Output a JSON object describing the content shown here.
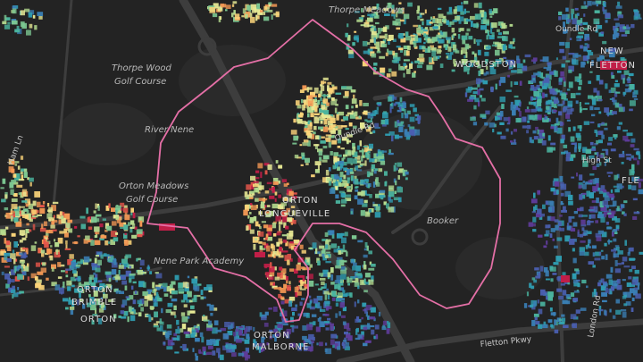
{
  "map": {
    "background": "#232323",
    "road_color": "#3d3d3d",
    "boundary_color": "#e46fa6",
    "palette": [
      "#5e3c99",
      "#4a5fb0",
      "#3a7fb5",
      "#2f9eb2",
      "#4ab39e",
      "#7dc993",
      "#b6dc8f",
      "#e8ea95",
      "#fcd57a",
      "#f79a55",
      "#e5554a",
      "#c21e48"
    ],
    "labels": {
      "thorpe_meadows": "Thorpe Meadows",
      "thorpe_wood": "Thorpe Wood",
      "golf_course_1": "Golf Course",
      "river_nene": "River Nene",
      "orton_meadows": "Orton Meadows",
      "golf_course_2": "Golf Course",
      "woodston": "WOODSTON",
      "new": "NEW",
      "fletton": "FLETTON",
      "orton": "ORTON",
      "longueville": "LONGUEVILLE",
      "nene_park_academy": "Nene Park Academy",
      "booker": "Booker",
      "ham_ln": "Ham Ln",
      "oundle_rd_1": "Oundle Rd",
      "oundle_rd_2": "Oundle Rd",
      "high_st": "High St",
      "fletton_pkwy": "Fletton Pkwy",
      "london_rd": "London Rd",
      "orton_malborne_1": "ORTON",
      "orton_malborne_2": "MALBORNE",
      "orton_wistow_1": "ORTON",
      "orton_wistow_2": "BRIMBLE",
      "orton_wistow_3": "ORTON",
      "fle": "FLE"
    }
  }
}
